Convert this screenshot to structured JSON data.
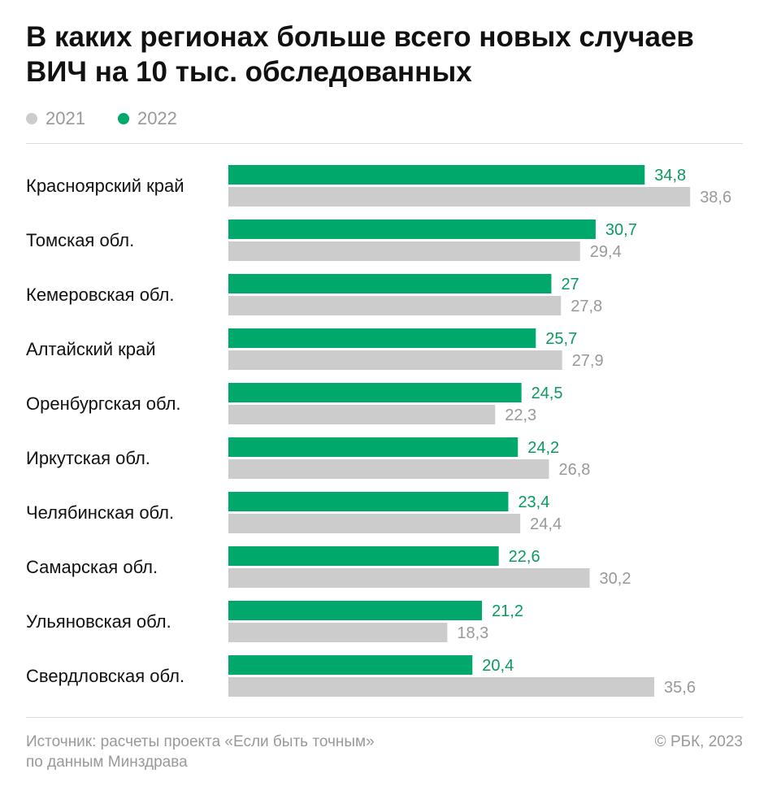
{
  "chart_data": {
    "type": "bar",
    "orientation": "horizontal",
    "title": "В каких регионах больше всего новых случаев ВИЧ на 10 тыс. обследованных",
    "categories": [
      "Красноярский край",
      "Томская обл.",
      "Кемеровская обл.",
      "Алтайский край",
      "Оренбургская обл.",
      "Иркутская обл.",
      "Челябинская обл.",
      "Самарская обл.",
      "Ульяновская обл.",
      "Свердловская обл."
    ],
    "series": [
      {
        "name": "2022",
        "color": "#00A86B",
        "values": [
          34.8,
          30.7,
          27,
          25.7,
          24.5,
          24.2,
          23.4,
          22.6,
          21.2,
          20.4
        ],
        "labels": [
          "34,8",
          "30,7",
          "27",
          "25,7",
          "24,5",
          "24,2",
          "23,4",
          "22,6",
          "21,2",
          "20,4"
        ]
      },
      {
        "name": "2021",
        "color": "#CCCCCC",
        "values": [
          38.6,
          29.4,
          27.8,
          27.9,
          22.3,
          26.8,
          24.4,
          30.2,
          18.3,
          35.6
        ],
        "labels": [
          "38,6",
          "29,4",
          "27,8",
          "27,9",
          "22,3",
          "26,8",
          "24,4",
          "30,2",
          "18,3",
          "35,6"
        ]
      }
    ],
    "legend": [
      "2021",
      "2022"
    ],
    "legend_position": "top-left",
    "grid": false
  },
  "legend": {
    "y2021": "2021",
    "y2022": "2022"
  },
  "footer": {
    "source_line1": "Источник: расчеты проекта «Если быть точным»",
    "source_line2": "по данным Минздрава",
    "copyright": "© РБК, 2023"
  }
}
